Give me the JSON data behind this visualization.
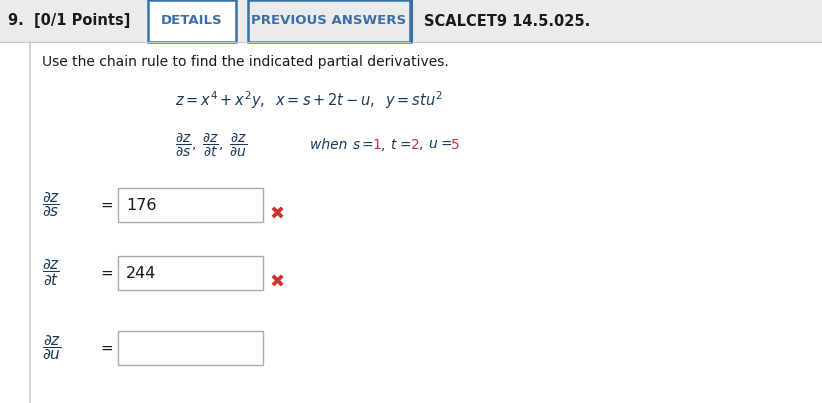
{
  "bg_color": "#ebebeb",
  "content_bg": "#ffffff",
  "header_bg": "#ebebeb",
  "tab_color": "#3a6fa8",
  "header_text": "9.  [0/1 Points]",
  "tab1": "DETAILS",
  "tab2": "PREVIOUS ANSWERS",
  "tab3": "SCALCET9 14.5.025.",
  "wrong_color": "#cc3333",
  "box_border": "#aaaaaa",
  "text_color": "#1a1a1a",
  "dark_blue": "#1a3a5c",
  "when_value_color": "#cc3333",
  "answer1_value": "176",
  "answer2_value": "244"
}
